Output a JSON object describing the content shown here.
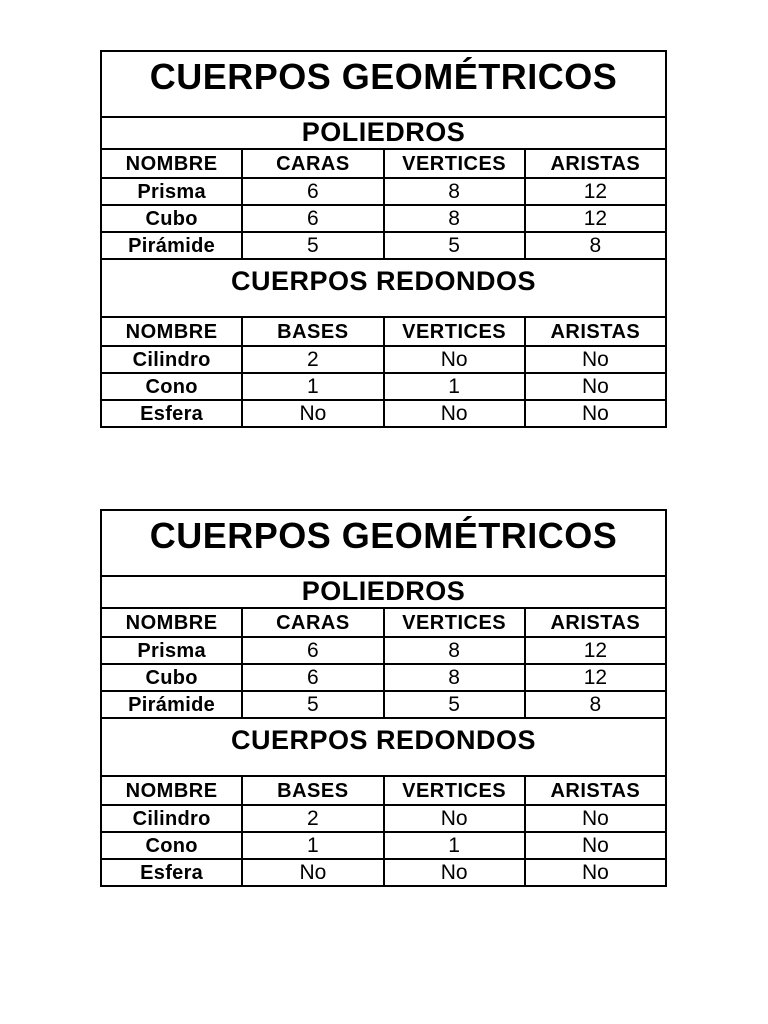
{
  "colors": {
    "page_background": "#ffffff",
    "border": "#000000",
    "text": "#000000"
  },
  "table": {
    "title": "CUERPOS GEOMÉTRICOS",
    "sections": [
      {
        "heading": "POLIEDROS",
        "columns": [
          "NOMBRE",
          "CARAS",
          "VERTICES",
          "ARISTAS"
        ],
        "rows": [
          {
            "name": "Prisma",
            "values": [
              "6",
              "8",
              "12"
            ]
          },
          {
            "name": "Cubo",
            "values": [
              "6",
              "8",
              "12"
            ]
          },
          {
            "name": "Pirámide",
            "values": [
              "5",
              "5",
              "8"
            ]
          }
        ]
      },
      {
        "heading": "CUERPOS REDONDOS",
        "columns": [
          "NOMBRE",
          "BASES",
          "VERTICES",
          "ARISTAS"
        ],
        "rows": [
          {
            "name": "Cilindro",
            "values": [
              "2",
              "No",
              "No"
            ]
          },
          {
            "name": "Cono",
            "values": [
              "1",
              "1",
              "No"
            ]
          },
          {
            "name": "Esfera",
            "values": [
              "No",
              "No",
              "No"
            ]
          }
        ]
      }
    ]
  }
}
